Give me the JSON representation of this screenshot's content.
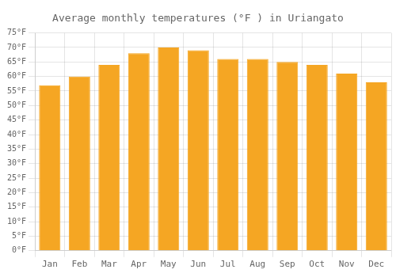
{
  "chart_data": {
    "type": "bar",
    "title": "Average monthly temperatures (°F ) in Uriangato",
    "categories": [
      "Jan",
      "Feb",
      "Mar",
      "Apr",
      "May",
      "Jun",
      "Jul",
      "Aug",
      "Sep",
      "Oct",
      "Nov",
      "Dec"
    ],
    "values": [
      57,
      60,
      64,
      68,
      70,
      69,
      66,
      66,
      65,
      64,
      61,
      58
    ],
    "color": "#F5A623",
    "ylim": [
      0,
      75
    ],
    "yticks": [
      {
        "value": 0,
        "label": "0°F"
      },
      {
        "value": 5,
        "label": "5°F"
      },
      {
        "value": 10,
        "label": "10°F"
      },
      {
        "value": 15,
        "label": "15°F"
      },
      {
        "value": 20,
        "label": "20°F"
      },
      {
        "value": 25,
        "label": "25°F"
      },
      {
        "value": 30,
        "label": "30°F"
      },
      {
        "value": 35,
        "label": "35°F"
      },
      {
        "value": 40,
        "label": "40°F"
      },
      {
        "value": 45,
        "label": "45°F"
      },
      {
        "value": 50,
        "label": "50°F"
      },
      {
        "value": 55,
        "label": "55°F"
      },
      {
        "value": 60,
        "label": "60°F"
      },
      {
        "value": 65,
        "label": "65°F"
      },
      {
        "value": 70,
        "label": "70°F"
      },
      {
        "value": 75,
        "label": "75°F"
      }
    ],
    "grid": true
  }
}
